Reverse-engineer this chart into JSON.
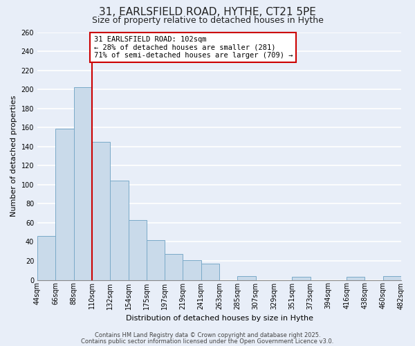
{
  "title": "31, EARLSFIELD ROAD, HYTHE, CT21 5PE",
  "subtitle": "Size of property relative to detached houses in Hythe",
  "xlabel": "Distribution of detached houses by size in Hythe",
  "ylabel": "Number of detached properties",
  "bar_labels": [
    "44sqm",
    "66sqm",
    "88sqm",
    "110sqm",
    "132sqm",
    "154sqm",
    "175sqm",
    "197sqm",
    "219sqm",
    "241sqm",
    "263sqm",
    "285sqm",
    "307sqm",
    "329sqm",
    "351sqm",
    "373sqm",
    "394sqm",
    "416sqm",
    "438sqm",
    "460sqm",
    "482sqm"
  ],
  "bar_values": [
    46,
    159,
    202,
    145,
    104,
    63,
    42,
    27,
    21,
    17,
    0,
    4,
    0,
    0,
    3,
    0,
    0,
    3,
    0,
    4
  ],
  "bar_color": "#c9daea",
  "bar_edge_color": "#7aaac8",
  "background_color": "#e8eef8",
  "grid_color": "#ffffff",
  "vline_color": "#cc0000",
  "vline_x_index": 2.5,
  "annotation_box_text": "31 EARLSFIELD ROAD: 102sqm\n← 28% of detached houses are smaller (281)\n71% of semi-detached houses are larger (709) →",
  "annotation_box_color": "#cc0000",
  "ylim": [
    0,
    260
  ],
  "yticks": [
    0,
    20,
    40,
    60,
    80,
    100,
    120,
    140,
    160,
    180,
    200,
    220,
    240,
    260
  ],
  "footer_line1": "Contains HM Land Registry data © Crown copyright and database right 2025.",
  "footer_line2": "Contains public sector information licensed under the Open Government Licence v3.0.",
  "title_fontsize": 11,
  "subtitle_fontsize": 9,
  "axis_label_fontsize": 8,
  "tick_fontsize": 7,
  "annotation_fontsize": 7.5,
  "footer_fontsize": 6
}
